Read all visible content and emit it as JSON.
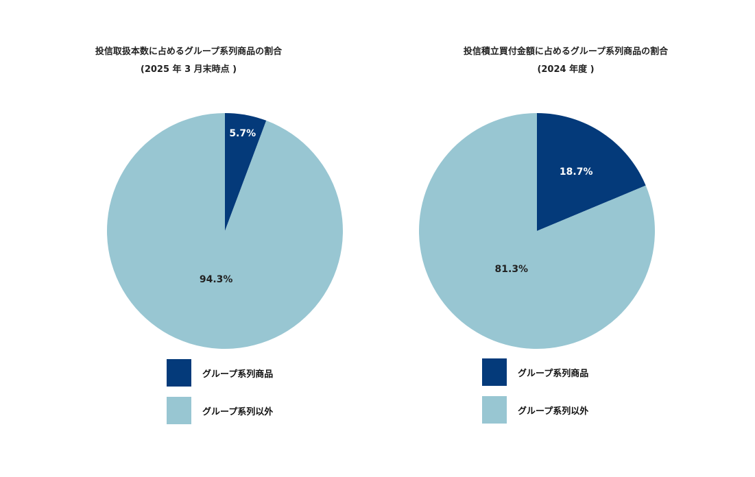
{
  "chart_data": [
    {
      "type": "pie",
      "title": "投信取扱本数に占めるグループ系列商品の割合",
      "subtitle": "(2025 年 3 月末時点 )",
      "slices": [
        {
          "name": "グループ系列商品",
          "value": 5.7,
          "label": "5.7%",
          "color": "#043a7a",
          "label_color": "#ffffff"
        },
        {
          "name": "グループ系列以外",
          "value": 94.3,
          "label": "94.3%",
          "color": "#98c6d2",
          "label_color": "#222222"
        }
      ],
      "legend": [
        {
          "name": "グループ系列商品",
          "color": "#043a7a"
        },
        {
          "name": "グループ系列以外",
          "color": "#98c6d2"
        }
      ],
      "legend_position": "bottom"
    },
    {
      "type": "pie",
      "title": "投信積立買付金額に占めるグループ系列商品の割合",
      "subtitle": "(2024 年度 )",
      "slices": [
        {
          "name": "グループ系列商品",
          "value": 18.7,
          "label": "18.7%",
          "color": "#043a7a",
          "label_color": "#ffffff"
        },
        {
          "name": "グループ系列以外",
          "value": 81.3,
          "label": "81.3%",
          "color": "#98c6d2",
          "label_color": "#222222"
        }
      ],
      "legend": [
        {
          "name": "グループ系列商品",
          "color": "#043a7a"
        },
        {
          "name": "グループ系列以外",
          "color": "#98c6d2"
        }
      ],
      "legend_position": "bottom"
    }
  ]
}
